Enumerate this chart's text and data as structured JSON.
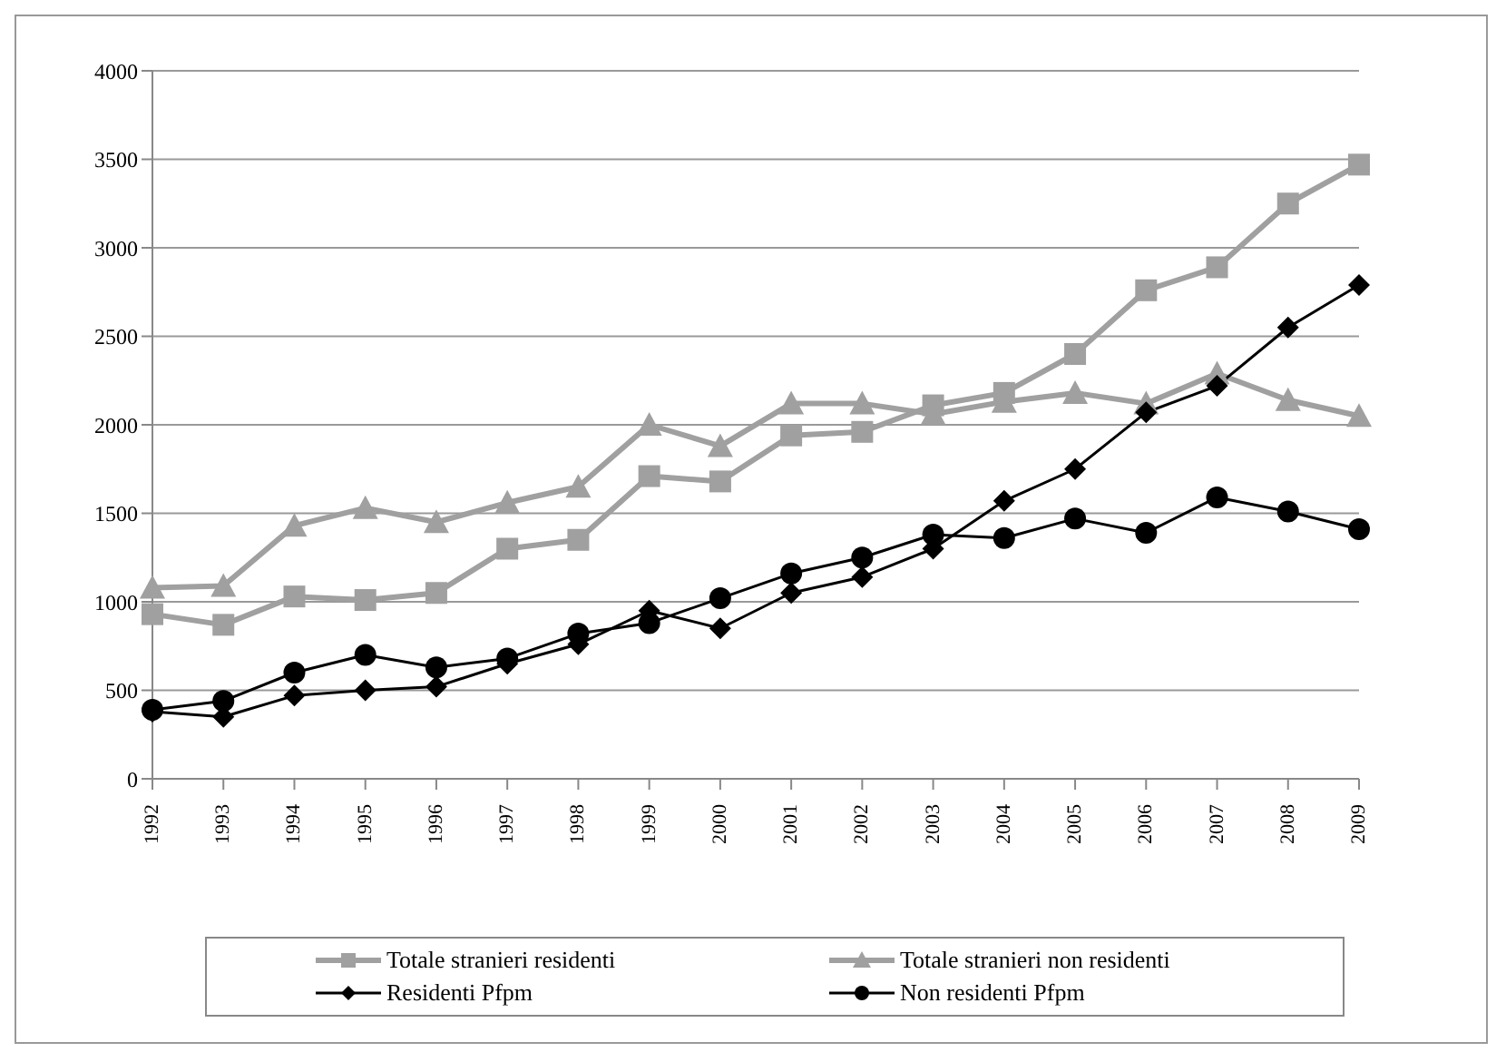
{
  "chart_data": {
    "type": "line",
    "categories": [
      "1992",
      "1993",
      "1994",
      "1995",
      "1996",
      "1997",
      "1998",
      "1999",
      "2000",
      "2001",
      "2002",
      "2003",
      "2004",
      "2005",
      "2006",
      "2007",
      "2008",
      "2009"
    ],
    "series": [
      {
        "name": "Totale stranieri residenti",
        "color": "#a0a0a0",
        "marker": "square",
        "values": [
          930,
          870,
          1030,
          1010,
          1050,
          1300,
          1350,
          1710,
          1680,
          1940,
          1960,
          2110,
          2180,
          2400,
          2760,
          2890,
          3250,
          3470
        ]
      },
      {
        "name": "Totale stranieri non residenti",
        "color": "#a0a0a0",
        "marker": "triangle",
        "values": [
          1080,
          1090,
          1430,
          1530,
          1450,
          1560,
          1650,
          2000,
          1880,
          2120,
          2120,
          2060,
          2130,
          2180,
          2120,
          2290,
          2140,
          2050
        ]
      },
      {
        "name": "Residenti Pfpm",
        "color": "#000000",
        "marker": "diamond",
        "values": [
          380,
          350,
          470,
          500,
          520,
          650,
          760,
          950,
          850,
          1050,
          1140,
          1300,
          1570,
          1750,
          2070,
          2220,
          2550,
          2790
        ]
      },
      {
        "name": "Non residenti Pfpm",
        "color": "#000000",
        "marker": "circle",
        "values": [
          390,
          440,
          600,
          700,
          630,
          680,
          820,
          880,
          1020,
          1160,
          1250,
          1380,
          1360,
          1470,
          1390,
          1590,
          1510,
          1410
        ]
      }
    ],
    "ylim": [
      0,
      4000
    ],
    "yticks": [
      0,
      500,
      1000,
      1500,
      2000,
      2500,
      3000,
      3500,
      4000
    ],
    "grid": "y",
    "legend": "bottom"
  }
}
